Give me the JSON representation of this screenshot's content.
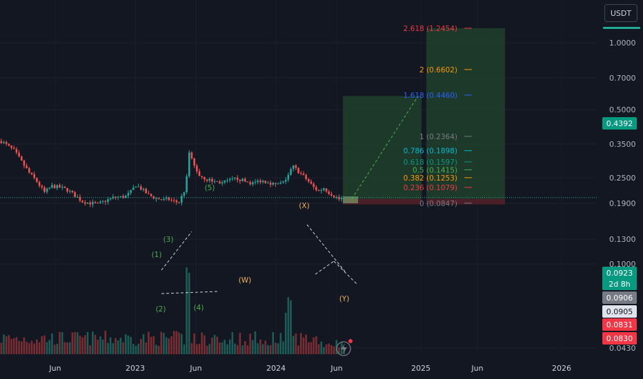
{
  "currency_button": "USDT",
  "colors": {
    "background": "#131722",
    "up": "#26a69a",
    "down": "#ef5350",
    "profit_zone": "#1e3d2a",
    "loss_zone": "#4a1f28",
    "accent_green": "#22ab94"
  },
  "chart_data": {
    "type": "candlestick",
    "y_scale": "log",
    "y_ticks": [
      "1.0000",
      "0.7000",
      "0.5000",
      "0.3500",
      "0.2500",
      "0.1900",
      "0.1300",
      "0.1000",
      "0.0430"
    ],
    "x_ticks": [
      "Jun",
      "2023",
      "Jun",
      "2024",
      "Jun",
      "2025",
      "Jun",
      "2026"
    ],
    "price_labels": [
      {
        "text": "0.4392",
        "bg": "#089981",
        "fg": "#ffffff"
      },
      {
        "text": "0.0923",
        "bg": "#089981",
        "fg": "#ffffff"
      },
      {
        "text": "2d 8h",
        "bg": "#089981",
        "fg": "#ffffff"
      },
      {
        "text": "0.0906",
        "bg": "#787b86",
        "fg": "#ffffff"
      },
      {
        "text": "0.0905",
        "bg": "#e0e3eb",
        "fg": "#131722"
      },
      {
        "text": "0.0831",
        "bg": "#f23645",
        "fg": "#ffffff"
      },
      {
        "text": "0.0830",
        "bg": "#f23645",
        "fg": "#ffffff"
      }
    ],
    "fib_levels": [
      {
        "label": "2.618 (1.2454)",
        "color": "#f23645"
      },
      {
        "label": "2 (0.6602)",
        "color": "#ff9800"
      },
      {
        "label": "1.618 (0.4460)",
        "color": "#2962ff"
      },
      {
        "label": "1 (0.2364)",
        "color": "#787b86"
      },
      {
        "label": "0.786 (0.1898)",
        "color": "#00bcd4"
      },
      {
        "label": "0.618 (0.1597)",
        "color": "#089981"
      },
      {
        "label": "0.5 (0.1415)",
        "color": "#4caf50"
      },
      {
        "label": "0.382 (0.1253)",
        "color": "#ff9800"
      },
      {
        "label": "0.236 (0.1079)",
        "color": "#f23645"
      },
      {
        "label": "0 (0.0847)",
        "color": "#787b86"
      }
    ],
    "wave_labels": [
      {
        "text": "(1)",
        "color": "#4caf50"
      },
      {
        "text": "(2)",
        "color": "#4caf50"
      },
      {
        "text": "(3)",
        "color": "#4caf50"
      },
      {
        "text": "(4)",
        "color": "#4caf50"
      },
      {
        "text": "(5)",
        "color": "#4caf50"
      },
      {
        "text": "(W)",
        "color": "#f0b35b"
      },
      {
        "text": "(X)",
        "color": "#f0b35b"
      },
      {
        "text": "(Y)",
        "color": "#f0b35b"
      }
    ],
    "target_level": 0.4392,
    "last_price": 0.0923
  }
}
